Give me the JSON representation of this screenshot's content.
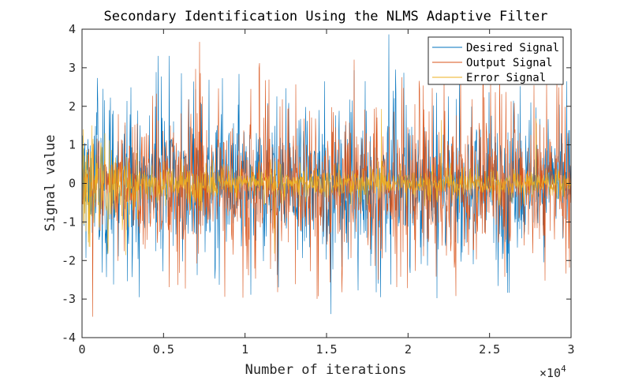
{
  "chart_data": {
    "type": "line",
    "title": "Secondary Identification Using the NLMS Adaptive Filter",
    "xlabel": "Number of iterations",
    "ylabel": "Signal value",
    "x_exponent_label": "×10",
    "x_exponent_power": "4",
    "xlim": [
      0,
      30000
    ],
    "ylim": [
      -4,
      4
    ],
    "x_ticks": [
      0,
      5000,
      10000,
      15000,
      20000,
      25000,
      30000
    ],
    "x_tick_labels": [
      "0",
      "0.5",
      "1",
      "1.5",
      "2",
      "2.5",
      "3"
    ],
    "y_ticks": [
      -4,
      -3,
      -2,
      -1,
      0,
      1,
      2,
      3,
      4
    ],
    "y_tick_labels": [
      "-4",
      "-3",
      "-2",
      "-1",
      "0",
      "1",
      "2",
      "3",
      "4"
    ],
    "legend_position": "top-right",
    "series": [
      {
        "name": "Desired Signal",
        "color": "#0072BD",
        "envelope_x": [
          0,
          1000,
          2000,
          3000,
          4000,
          6000,
          10000,
          20000,
          30000
        ],
        "envelope_amplitude": [
          2.2,
          2.0,
          1.8,
          1.6,
          1.5,
          1.5,
          1.5,
          1.5,
          1.5
        ],
        "peak_amplitude": 3.9
      },
      {
        "name": "Output Signal",
        "color": "#D95319",
        "envelope_x": [
          0,
          1000,
          2000,
          3000,
          4000,
          6000,
          10000,
          20000,
          30000
        ],
        "envelope_amplitude": [
          0.3,
          0.7,
          1.0,
          1.3,
          1.45,
          1.5,
          1.5,
          1.5,
          1.5
        ],
        "peak_amplitude": 3.8
      },
      {
        "name": "Error Signal",
        "color": "#EDB120",
        "envelope_x": [
          0,
          1000,
          2000,
          3000,
          4000,
          6000,
          10000,
          20000,
          30000
        ],
        "envelope_amplitude": [
          1.9,
          1.2,
          0.75,
          0.55,
          0.45,
          0.4,
          0.33,
          0.3,
          0.28
        ],
        "peak_amplitude": 2.0
      }
    ]
  }
}
